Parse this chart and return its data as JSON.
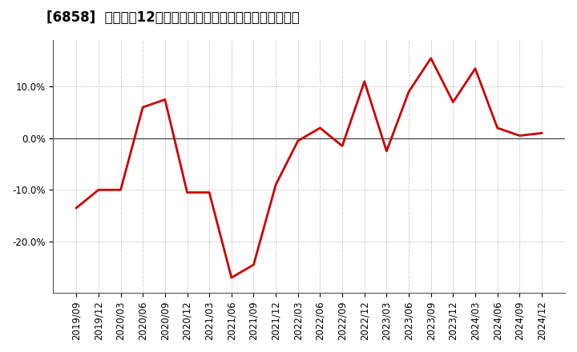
{
  "title": "[6858]  売上高の12か月移動合計の対前年同期増減率の推移",
  "x_labels": [
    "2019/09",
    "2019/12",
    "2020/03",
    "2020/06",
    "2020/09",
    "2020/12",
    "2021/03",
    "2021/06",
    "2021/09",
    "2021/12",
    "2022/03",
    "2022/06",
    "2022/09",
    "2022/12",
    "2023/03",
    "2023/06",
    "2023/09",
    "2023/12",
    "2024/03",
    "2024/06",
    "2024/09",
    "2024/12"
  ],
  "y_values": [
    -13.5,
    -10.0,
    -10.0,
    6.0,
    7.5,
    -10.5,
    -10.5,
    -27.0,
    -24.5,
    -9.0,
    -0.5,
    2.0,
    -1.5,
    11.0,
    -2.5,
    9.0,
    15.5,
    7.0,
    13.5,
    2.0,
    0.5,
    1.0
  ],
  "line_color": "#cc0000",
  "line_width": 2.0,
  "background_color": "#ffffff",
  "plot_bg_color": "#ffffff",
  "grid_color": "#aaaaaa",
  "yticks": [
    -20.0,
    -10.0,
    0.0,
    10.0
  ],
  "ytick_labels": [
    "-20.0%",
    "-10.0%",
    "0.0%",
    "10.0%"
  ],
  "ylim": [
    -30,
    19
  ],
  "title_fontsize": 12,
  "tick_fontsize": 8.5,
  "zero_line_color": "#333333"
}
